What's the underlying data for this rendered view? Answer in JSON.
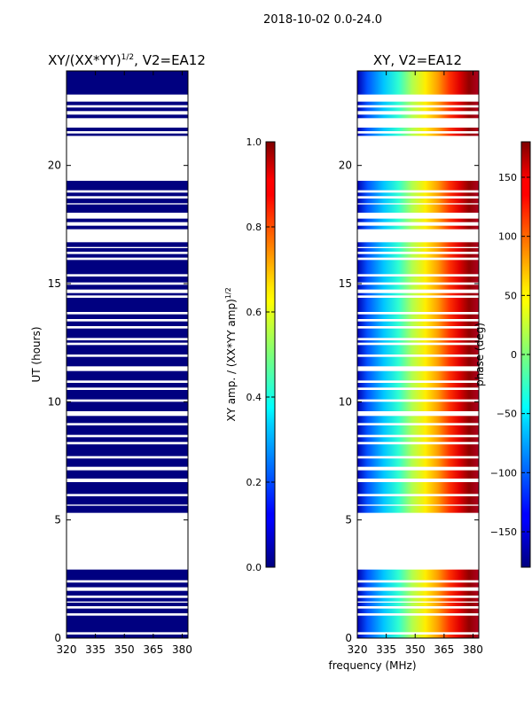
{
  "suptitle": "2018-10-02 0.0-24.0",
  "chart_data": [
    {
      "type": "heatmap",
      "id": "amp",
      "title": "XY/(XX*YY)",
      "title_sup": "1/2",
      "title_suffix": ", V2=EA12",
      "ylabel": "UT (hours)",
      "xlabel": "",
      "xlim": [
        320,
        383
      ],
      "ylim": [
        0,
        24
      ],
      "xticks": [
        320,
        335,
        350,
        365,
        380
      ],
      "yticks": [
        0,
        5,
        10,
        15,
        20
      ],
      "colormap": "jet",
      "uniform_value": 0.0,
      "cbar": {
        "label": "XY amp. / (XX*YY amp)",
        "label_sup": "1/2",
        "range": [
          0.0,
          1.0
        ],
        "ticks": [
          "0.0",
          "0.2",
          "0.4",
          "0.6",
          "0.8",
          "1.0"
        ]
      }
    },
    {
      "type": "heatmap",
      "id": "phase",
      "title": "XY, V2=EA12",
      "ylabel": "",
      "xlabel": "frequency (MHz)",
      "xlim": [
        320,
        383
      ],
      "ylim": [
        0,
        24
      ],
      "xticks": [
        320,
        335,
        350,
        365,
        380
      ],
      "yticks": [
        0,
        5,
        10,
        15,
        20
      ],
      "colormap": "jet",
      "phase_gradient_deg": [
        -160,
        180
      ],
      "cbar": {
        "label": "phase (deg)",
        "range": [
          -180,
          180
        ],
        "ticks": [
          "−150",
          "−100",
          "−50",
          "0",
          "50",
          "100",
          "150"
        ]
      }
    }
  ],
  "data_time_ranges_hours": [
    [
      0.0,
      0.15
    ],
    [
      0.25,
      0.95
    ],
    [
      1.05,
      1.25
    ],
    [
      1.35,
      1.5
    ],
    [
      1.55,
      1.7
    ],
    [
      1.8,
      2.0
    ],
    [
      2.15,
      2.35
    ],
    [
      2.45,
      2.9
    ],
    [
      5.3,
      5.6
    ],
    [
      5.65,
      6.0
    ],
    [
      6.1,
      6.6
    ],
    [
      6.75,
      7.1
    ],
    [
      7.25,
      7.6
    ],
    [
      7.7,
      8.2
    ],
    [
      8.3,
      8.5
    ],
    [
      8.6,
      9.0
    ],
    [
      9.1,
      9.4
    ],
    [
      9.6,
      10.0
    ],
    [
      10.1,
      10.5
    ],
    [
      10.6,
      10.8
    ],
    [
      10.9,
      11.3
    ],
    [
      11.5,
      11.9
    ],
    [
      12.0,
      12.4
    ],
    [
      12.5,
      12.6
    ],
    [
      12.7,
      13.1
    ],
    [
      13.2,
      13.4
    ],
    [
      13.5,
      13.7
    ],
    [
      13.8,
      14.4
    ],
    [
      14.5,
      14.6
    ],
    [
      14.75,
      14.95
    ],
    [
      15.05,
      15.3
    ],
    [
      15.4,
      16.0
    ],
    [
      16.1,
      16.25
    ],
    [
      16.35,
      16.5
    ],
    [
      16.55,
      16.75
    ],
    [
      17.3,
      17.45
    ],
    [
      17.6,
      17.75
    ],
    [
      18.0,
      18.35
    ],
    [
      18.4,
      18.6
    ],
    [
      18.7,
      18.85
    ],
    [
      18.95,
      19.35
    ],
    [
      21.25,
      21.35
    ],
    [
      21.45,
      21.6
    ],
    [
      22.0,
      22.15
    ],
    [
      22.3,
      22.45
    ],
    [
      22.55,
      22.7
    ],
    [
      23.0,
      24.0
    ]
  ]
}
